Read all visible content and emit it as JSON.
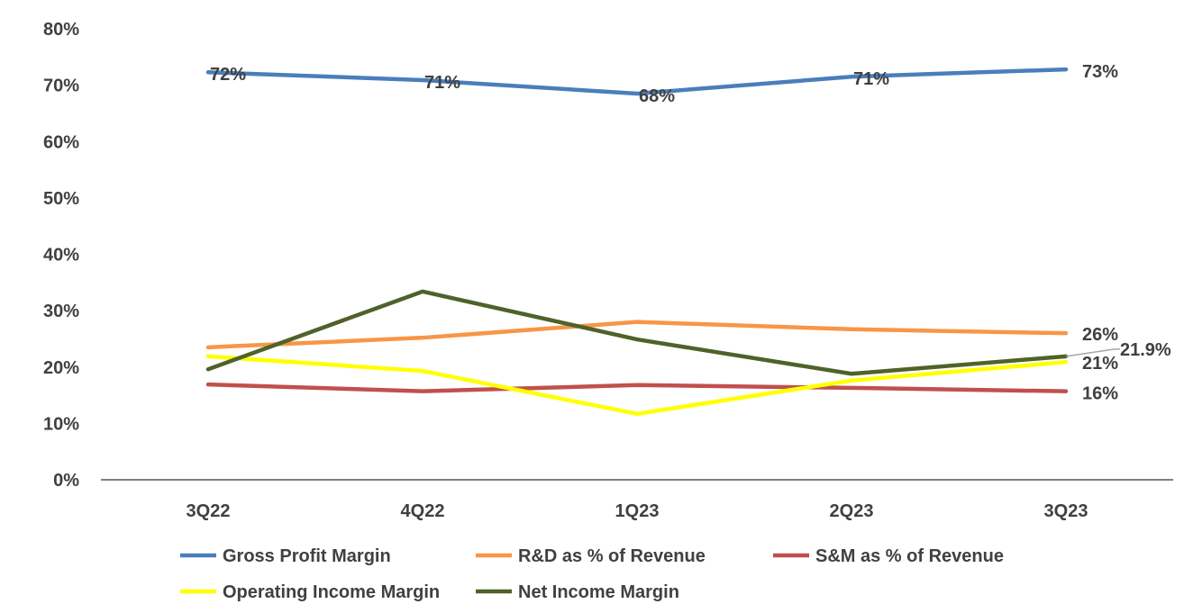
{
  "chart_data": {
    "type": "line",
    "title": "",
    "xlabel": "",
    "ylabel": "",
    "categories": [
      "3Q22",
      "4Q22",
      "1Q23",
      "2Q23",
      "3Q23"
    ],
    "ylim": [
      0,
      80
    ],
    "yticks": [
      "0%",
      "10%",
      "20%",
      "30%",
      "40%",
      "50%",
      "60%",
      "70%",
      "80%"
    ],
    "grid": false,
    "legend_position": "bottom",
    "series": [
      {
        "name": "Gross Profit Margin",
        "color": "#4a7ebb",
        "values": [
          72.3,
          70.9,
          68.5,
          71.5,
          72.8
        ],
        "labels": [
          "72%",
          "71%",
          "68%",
          "71%",
          "73%"
        ]
      },
      {
        "name": "R&D as % of Revenue",
        "color": "#f79646",
        "values": [
          23.5,
          25.2,
          28.0,
          26.7,
          26.0
        ],
        "labels": [
          "",
          "",
          "",
          "",
          "26%"
        ]
      },
      {
        "name": "S&M as % of Revenue",
        "color": "#c0504d",
        "values": [
          16.9,
          15.7,
          16.8,
          16.3,
          15.7
        ],
        "labels": [
          "",
          "",
          "",
          "",
          "16%"
        ]
      },
      {
        "name": "Operating Income Margin",
        "color": "#ffff00",
        "values": [
          21.9,
          19.3,
          11.7,
          17.6,
          20.9
        ],
        "labels": [
          "",
          "",
          "",
          "",
          "21%"
        ]
      },
      {
        "name": "Net Income Margin",
        "color": "#4f6228",
        "values": [
          19.6,
          33.4,
          24.9,
          18.8,
          21.9
        ],
        "labels": [
          "",
          "",
          "",
          "",
          "21.9%"
        ]
      }
    ]
  }
}
